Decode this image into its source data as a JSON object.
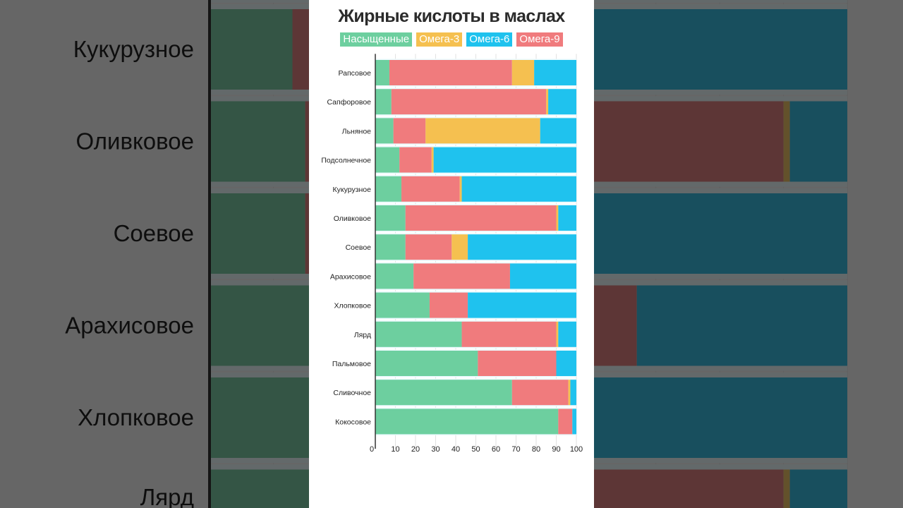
{
  "chart_data": {
    "type": "bar",
    "orientation": "horizontal",
    "stacked": true,
    "title": "Жирные кислоты в маслах",
    "xlabel": "",
    "ylabel": "",
    "xlim": [
      0,
      100
    ],
    "x_ticks": [
      "0",
      "10",
      "20",
      "30",
      "40",
      "50",
      "60",
      "70",
      "80",
      "90",
      "100"
    ],
    "grid": true,
    "legend_position": "top",
    "categories": [
      "Рапсовое",
      "Сапфоровое",
      "Льняное",
      "Подсолнечное",
      "Кукурузное",
      "Оливковое",
      "Соевое",
      "Арахисовое",
      "Хлопковое",
      "Лярд",
      "Пальмовое",
      "Сливочное",
      "Кокосовое"
    ],
    "series": [
      {
        "name": "Насыщенные",
        "color": "#6dcf9f",
        "values": [
          7,
          8,
          9,
          12,
          13,
          15,
          15,
          19,
          27,
          43,
          51,
          68,
          91
        ]
      },
      {
        "name": "Омега-9",
        "color": "#f07b7d",
        "values": [
          61,
          77,
          16,
          16,
          29,
          75,
          23,
          48,
          19,
          47,
          39,
          28,
          7
        ]
      },
      {
        "name": "Омега-3",
        "color": "#f5c050",
        "values": [
          11,
          1,
          57,
          1,
          1,
          1,
          8,
          0,
          0,
          1,
          0,
          1,
          0
        ]
      },
      {
        "name": "Омега-6",
        "color": "#1fc2ee",
        "values": [
          21,
          14,
          18,
          71,
          57,
          9,
          54,
          33,
          54,
          9,
          10,
          3,
          2
        ]
      }
    ],
    "legend_order": [
      "Насыщенные",
      "Омега-3",
      "Омега-6",
      "Омега-9"
    ]
  },
  "background_labels": [
    "Кукурузное",
    "Оливковое",
    "Соевое",
    "Арахисовое",
    "Хлопковое",
    "Лярд"
  ]
}
